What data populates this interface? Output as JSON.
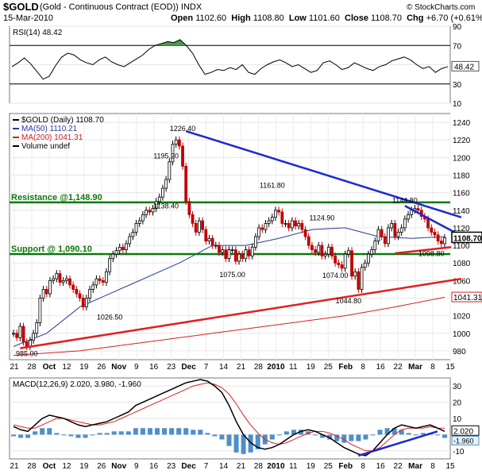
{
  "header": {
    "symbol": "$GOLD",
    "description": "(Gold - Continuous Contract (EOD)) INDX",
    "date": "15-Mar-2010",
    "open_label": "Open",
    "open": "1102.60",
    "high_label": "High",
    "high": "1108.80",
    "low_label": "Low",
    "low": "1101.60",
    "close_label": "Close",
    "close": "1108.70",
    "chg_label": "Chg",
    "chg": "+6.70 (+0.61%)",
    "watermark": "© StockCharts.com"
  },
  "chart_data": [
    {
      "type": "line",
      "title": "RSI(14) 48.42",
      "ylim": [
        10,
        90
      ],
      "yticks": [
        90,
        70,
        50,
        30,
        10
      ],
      "yticklabels": [
        "90",
        "70",
        "50",
        "30",
        "10"
      ],
      "overbought": 70,
      "oversold": 30,
      "current_label": "48.42",
      "series": [
        {
          "name": "RSI(14)",
          "values": [
            48,
            52,
            57,
            51,
            43,
            35,
            38,
            49,
            58,
            62,
            60,
            55,
            52,
            50,
            55,
            58,
            53,
            50,
            48,
            52,
            56,
            60,
            66,
            70,
            72,
            74,
            73,
            76,
            70,
            62,
            50,
            40,
            42,
            45,
            44,
            47,
            45,
            50,
            42,
            40,
            46,
            50,
            53,
            55,
            52,
            48,
            50,
            46,
            42,
            44,
            52,
            54,
            50,
            45,
            47,
            52,
            49,
            46,
            44,
            48,
            50,
            54,
            56,
            58,
            55,
            50,
            46,
            48,
            42,
            46,
            48
          ]
        }
      ]
    },
    {
      "type": "candlestick",
      "title": "$GOLD (Daily) 1108.70",
      "ylim": [
        970,
        1250
      ],
      "yticks": [
        980,
        1000,
        1020,
        1040,
        1060,
        1080,
        1100,
        1120,
        1140,
        1160,
        1180,
        1200,
        1220,
        1240
      ],
      "xlabels": [
        "21",
        "28",
        "Oct",
        "12",
        "19",
        "26",
        "Nov",
        "9",
        "16",
        "23",
        "Dec",
        "7",
        "14",
        "21",
        "28",
        "2010",
        "11",
        "19",
        "25",
        "Feb",
        "8",
        "16",
        "22",
        "Mar",
        "8",
        "15"
      ],
      "legend": [
        {
          "name": "$GOLD (Daily) 1108.70",
          "color": "#000000"
        },
        {
          "name": "MA(50) 1110.21",
          "color": "#2a3a9a"
        },
        {
          "name": "MA(200) 1041.31",
          "color": "#d42020"
        },
        {
          "name": "Volume undef",
          "color": "#000000"
        }
      ],
      "closes": [
        1000,
        995,
        1008,
        990,
        985,
        992,
        1000,
        1012,
        1040,
        1050,
        1045,
        1060,
        1062,
        1068,
        1058,
        1060,
        1062,
        1055,
        1050,
        1045,
        1040,
        1030,
        1040,
        1050,
        1055,
        1062,
        1060,
        1058,
        1070,
        1085,
        1090,
        1094,
        1098,
        1095,
        1102,
        1110,
        1115,
        1125,
        1128,
        1135,
        1140,
        1138,
        1142,
        1150,
        1155,
        1165,
        1175,
        1195,
        1215,
        1220,
        1213,
        1190,
        1150,
        1135,
        1125,
        1115,
        1128,
        1118,
        1105,
        1108,
        1100,
        1100,
        1092,
        1095,
        1085,
        1095,
        1095,
        1082,
        1090,
        1085,
        1095,
        1088,
        1098,
        1110,
        1120,
        1118,
        1125,
        1128,
        1132,
        1140,
        1138,
        1125,
        1125,
        1120,
        1128,
        1122,
        1125,
        1118,
        1110,
        1100,
        1095,
        1092,
        1100,
        1088,
        1090,
        1098,
        1088,
        1080,
        1078,
        1074,
        1090,
        1094,
        1065,
        1070,
        1050,
        1075,
        1080,
        1090,
        1095,
        1105,
        1118,
        1110,
        1102,
        1120,
        1125,
        1110,
        1115,
        1120,
        1130,
        1135,
        1140,
        1142,
        1140,
        1133,
        1130,
        1120,
        1115,
        1112,
        1105,
        1102,
        1108.7
      ],
      "ma50_label": "MA(50) 1110.21",
      "ma200_label": "MA(200) 1041.31",
      "ma50": [
        [
          0,
          985
        ],
        [
          10,
          1000
        ],
        [
          20,
          1030
        ],
        [
          35,
          1055
        ],
        [
          50,
          1080
        ],
        [
          60,
          1100
        ],
        [
          70,
          1100
        ],
        [
          80,
          1108
        ],
        [
          90,
          1118
        ],
        [
          100,
          1120
        ],
        [
          110,
          1110
        ],
        [
          120,
          1108
        ],
        [
          130,
          1110
        ]
      ],
      "ma200": [
        [
          0,
          975
        ],
        [
          20,
          980
        ],
        [
          40,
          990
        ],
        [
          60,
          1000
        ],
        [
          80,
          1010
        ],
        [
          100,
          1020
        ],
        [
          115,
          1030
        ],
        [
          130,
          1041
        ]
      ],
      "current_close_label": "1108.70",
      "ma200_current_label": "1041.31",
      "annotations": [
        {
          "text": "1226.40",
          "x": 51,
          "y": 1226.4
        },
        {
          "text": "1195.20",
          "x": 46,
          "y": 1195.2
        },
        {
          "text": "1138.40",
          "x": 46,
          "y": 1138.4
        },
        {
          "text": "1161.80",
          "x": 78,
          "y": 1161.8
        },
        {
          "text": "1124.90",
          "x": 93,
          "y": 1124.9
        },
        {
          "text": "1144.80",
          "x": 118,
          "y": 1144.8
        },
        {
          "text": "1075.00",
          "x": 66,
          "y": 1075
        },
        {
          "text": "1074.00",
          "x": 97,
          "y": 1074
        },
        {
          "text": "1098.80",
          "x": 126,
          "y": 1098.8
        },
        {
          "text": "1044.80",
          "x": 101,
          "y": 1044.8
        },
        {
          "text": "1026.50",
          "x": 29,
          "y": 1026.5
        },
        {
          "text": "985.00",
          "x": 4,
          "y": 985
        }
      ],
      "levels": [
        {
          "label": "Resistance @1,148.90",
          "value": 1148.9,
          "color": "#0a7a0a"
        },
        {
          "label": "Support @ 1,090.10",
          "value": 1090.1,
          "color": "#0a7a0a"
        }
      ],
      "trendlines": [
        {
          "color": "#1a2ad0",
          "from": [
            52,
            1230
          ],
          "to": [
            135,
            1132
          ]
        },
        {
          "color": "#1a2ad0",
          "from": [
            118,
            1145
          ],
          "to": [
            133,
            1115
          ]
        },
        {
          "color": "#e02020",
          "from": [
            2,
            983
          ],
          "to": [
            135,
            1062
          ]
        },
        {
          "color": "#e02020",
          "from": [
            115,
            1091
          ],
          "to": [
            132,
            1098
          ]
        }
      ]
    },
    {
      "type": "line",
      "title": "MACD(12,26,9) 2.020, 3.980, -1.960",
      "ylim": [
        -15,
        35
      ],
      "yticks": [
        30,
        20,
        10,
        0,
        -10
      ],
      "yticklabels": [
        "30",
        "20",
        "10",
        "0",
        "-10"
      ],
      "macd_label": "2.020",
      "hist_label": "-1.960",
      "series": [
        {
          "name": "MACD",
          "values": [
            5,
            3,
            2,
            6,
            10,
            12,
            11,
            10,
            8,
            6,
            5,
            6,
            7,
            8,
            10,
            12,
            14,
            18,
            20,
            22,
            24,
            26,
            28,
            30,
            32,
            33,
            34,
            33,
            30,
            26,
            18,
            8,
            0,
            -5,
            -8,
            -9,
            -8,
            -6,
            -3,
            0,
            2,
            3,
            2,
            0,
            -2,
            -5,
            -8,
            -10,
            -12,
            -13,
            -10,
            -5,
            0,
            4,
            6,
            5,
            4,
            5,
            6,
            4,
            2
          ]
        },
        {
          "name": "Signal",
          "values": [
            6,
            5,
            4,
            4,
            6,
            8,
            10,
            10,
            9,
            8,
            7,
            6,
            6,
            7,
            8,
            10,
            12,
            14,
            16,
            18,
            20,
            22,
            24,
            26,
            28,
            30,
            31,
            32,
            31,
            29,
            25,
            19,
            12,
            6,
            1,
            -3,
            -5,
            -6,
            -5,
            -3,
            -1,
            1,
            2,
            2,
            1,
            -1,
            -3,
            -6,
            -8,
            -10,
            -10,
            -8,
            -4,
            0,
            3,
            4,
            4,
            4,
            5,
            4,
            4
          ]
        }
      ],
      "histogram": [
        -1,
        -2,
        -2,
        2,
        4,
        4,
        1,
        0,
        -1,
        -2,
        -2,
        0,
        1,
        1,
        2,
        2,
        2,
        4,
        4,
        4,
        4,
        4,
        4,
        4,
        4,
        3,
        3,
        1,
        -1,
        -3,
        -7,
        -11,
        -12,
        -11,
        -9,
        -6,
        -3,
        0,
        2,
        3,
        3,
        2,
        0,
        -2,
        -3,
        -4,
        -5,
        -4,
        -4,
        -3,
        0,
        3,
        4,
        4,
        3,
        1,
        0,
        1,
        1,
        0,
        -2
      ],
      "trendlines": [
        {
          "color": "#1a2ad0",
          "from": [
            48,
            -13
          ],
          "to": [
            59,
            2
          ]
        }
      ]
    }
  ]
}
